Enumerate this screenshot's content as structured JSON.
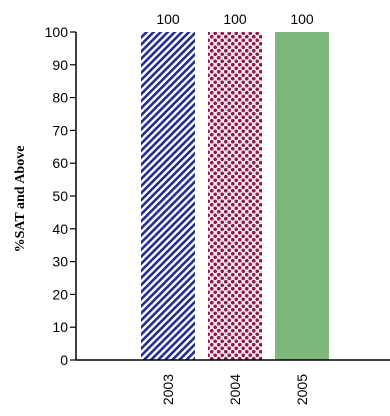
{
  "chart_data": {
    "type": "bar",
    "categories": [
      "2003",
      "2004",
      "2005"
    ],
    "values": [
      100,
      100,
      100
    ],
    "data_labels": [
      "100",
      "100",
      "100"
    ],
    "ylabel": "%SAT and Above",
    "xlabel": "",
    "ylim": [
      0,
      100
    ],
    "yticks": [
      "0",
      "10",
      "20",
      "30",
      "40",
      "50",
      "60",
      "70",
      "80",
      "90",
      "100"
    ],
    "grid": false,
    "legend": "none",
    "bar_styles": [
      {
        "pattern": "diagonal-stripes",
        "color": "#1f2f8f"
      },
      {
        "pattern": "dots",
        "color": "#8b1a4a"
      },
      {
        "pattern": "solid",
        "color": "#7db87a"
      }
    ]
  }
}
